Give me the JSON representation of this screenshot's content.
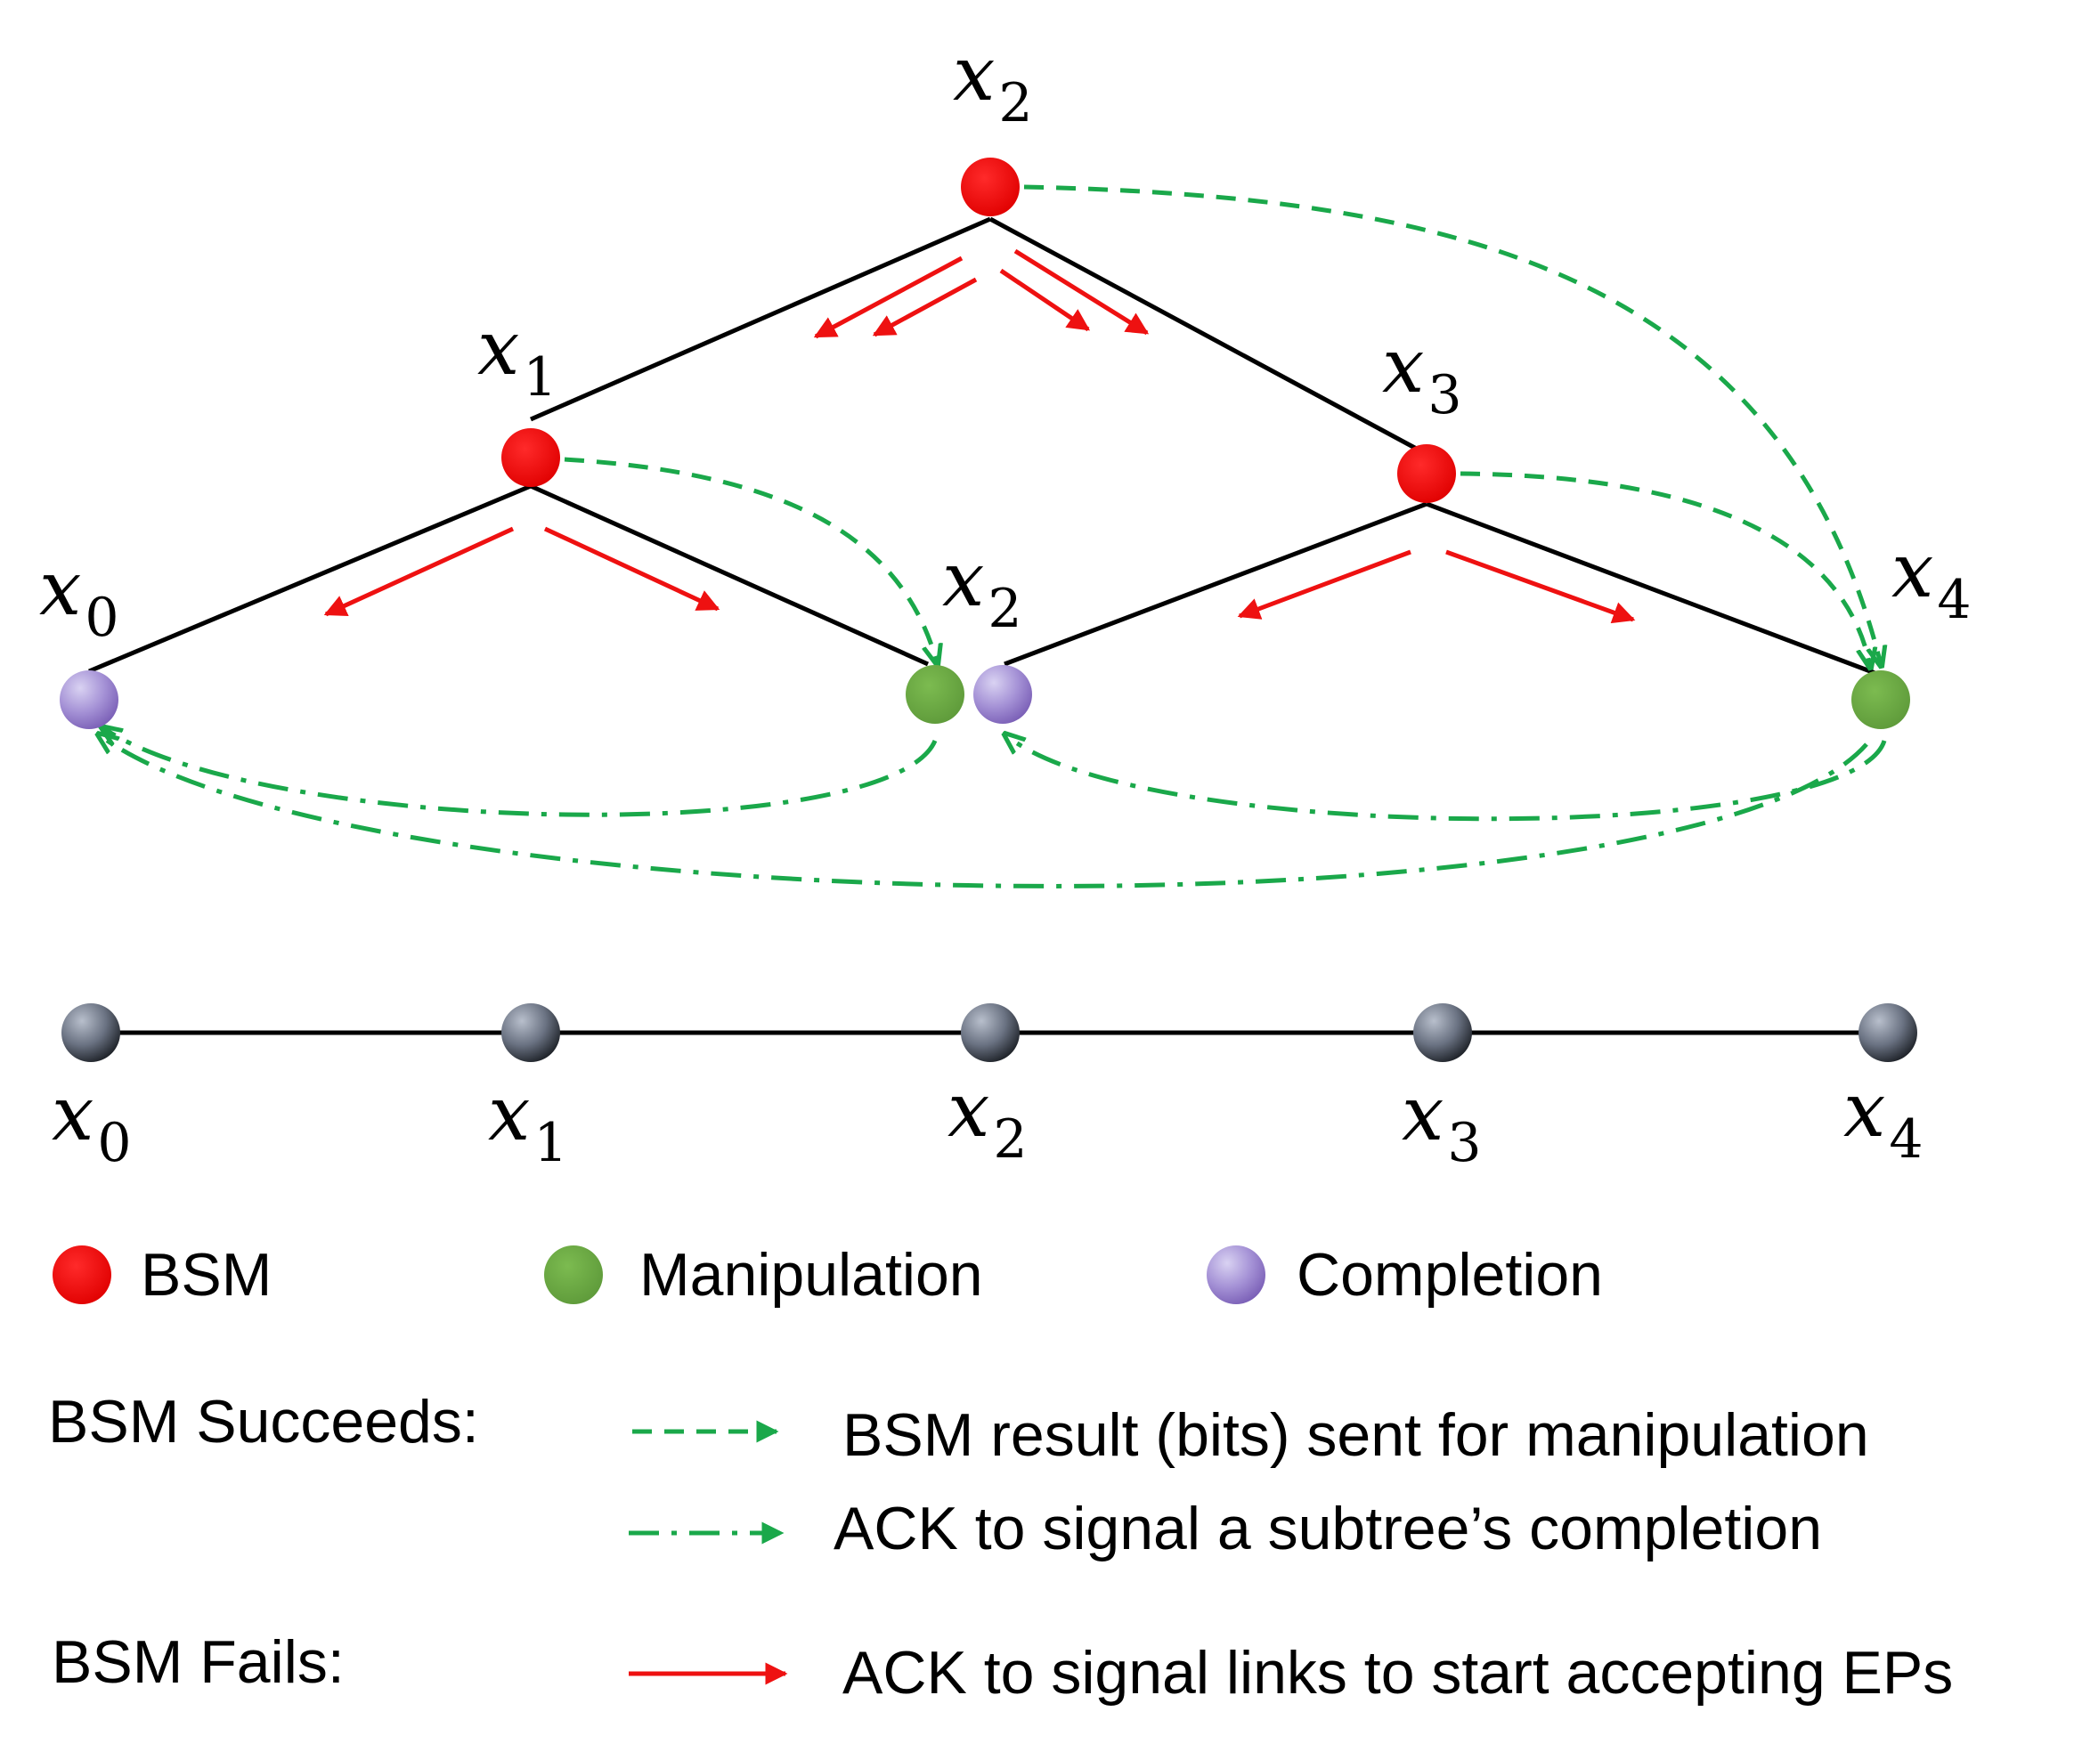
{
  "colors": {
    "bsm": "#ff0000",
    "manipulation": "#70ad47",
    "completion": "#9b84c9",
    "red_arrow": "#ee1111",
    "green_arrow": "#1aa84a",
    "chain_node": "#5a6070"
  },
  "tree": {
    "root": {
      "var": "x",
      "sub": "2"
    },
    "left_inner": {
      "var": "x",
      "sub": "1"
    },
    "right_inner": {
      "var": "x",
      "sub": "3"
    },
    "leaf_0": {
      "var": "x",
      "sub": "0"
    },
    "leaf_2": {
      "var": "x",
      "sub": "2"
    },
    "leaf_4": {
      "var": "x",
      "sub": "4"
    }
  },
  "chain": [
    {
      "var": "x",
      "sub": "0"
    },
    {
      "var": "x",
      "sub": "1"
    },
    {
      "var": "x",
      "sub": "2"
    },
    {
      "var": "x",
      "sub": "3"
    },
    {
      "var": "x",
      "sub": "4"
    }
  ],
  "legend": {
    "bsm": "BSM",
    "manipulation": "Manipulation",
    "completion": "Completion",
    "succeeds_heading": "BSM Succeeds:",
    "fails_heading": "BSM Fails:",
    "dashed_desc": "BSM result (bits) sent for manipulation",
    "dashdot_desc": "ACK to signal a subtree’s completion",
    "red_desc": "ACK to signal links to start accepting EPs"
  }
}
